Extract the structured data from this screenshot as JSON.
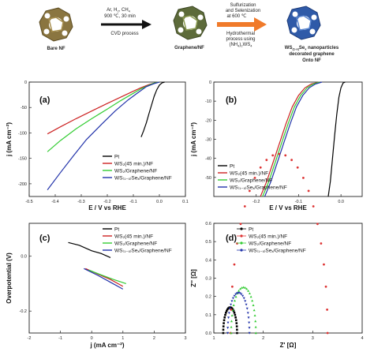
{
  "scheme": {
    "stage1_label": "Bare NF",
    "arrow1_lines": [
      "Ar, H",
      "900 ℃, 30 min"
    ],
    "arrow1_line1_parts": [
      "Ar, H",
      "2",
      ", CH",
      "4"
    ],
    "arrow1_below": "CVD process",
    "stage2_label": "Graphene/NF",
    "arrow2_above_lines": [
      "Sulfurization",
      "and Selenization",
      "at 600 ℃"
    ],
    "arrow2_below_lines": [
      "Hydrothermal",
      "process using"
    ],
    "arrow2_below_formula_parts": [
      "(NH",
      "4",
      ")",
      "2",
      "WS",
      "4"
    ],
    "stage3_label_parts": [
      "WS",
      "(1-x)",
      "Se",
      "x",
      " nanoparticles"
    ],
    "stage3_label_lines": [
      "decorated graphene",
      "Onto NF"
    ],
    "colors": {
      "bare": "#7d6a34",
      "graphene": "#5d6b3a",
      "ws": "#2f5aa8",
      "arrow1": "#111111",
      "arrow2": "#f07a2a"
    }
  },
  "chart_data": [
    {
      "panel": "(a)",
      "type": "line",
      "xlabel": "E / V vs RHE",
      "ylabel": "j (mA cm⁻²)",
      "xlim": [
        -0.5,
        0.1
      ],
      "ylim": [
        -225,
        0
      ],
      "xticks": [
        "-0.5",
        "-0.4",
        "-0.3",
        "-0.2",
        "-0.1",
        "0.0",
        "0.1"
      ],
      "yticks": [
        "0",
        "-50",
        "-100",
        "-150",
        "-200"
      ],
      "legend_position": "bottom-right",
      "series": [
        {
          "name": "Pt",
          "color": "#000000",
          "x": [
            -0.07,
            -0.06,
            -0.05,
            -0.04,
            -0.03,
            -0.02,
            -0.01,
            0.0,
            0.01,
            0.02
          ],
          "y": [
            -108,
            -95,
            -80,
            -62,
            -45,
            -28,
            -15,
            -6,
            -1.5,
            0
          ]
        },
        {
          "name": "WS₂(45 min.)/NF",
          "color": "#cc2222",
          "x": [
            -0.43,
            -0.38,
            -0.32,
            -0.26,
            -0.2,
            -0.15,
            -0.1,
            -0.07,
            -0.04,
            -0.02,
            0.0
          ],
          "y": [
            -102,
            -88,
            -72,
            -57,
            -42,
            -30,
            -18,
            -11,
            -5,
            -2,
            0
          ]
        },
        {
          "name": "WS₂/Graphene/NF",
          "color": "#33cc33",
          "x": [
            -0.43,
            -0.38,
            -0.32,
            -0.26,
            -0.2,
            -0.15,
            -0.1,
            -0.07,
            -0.04,
            -0.02,
            0.0
          ],
          "y": [
            -137,
            -115,
            -92,
            -72,
            -53,
            -37,
            -22,
            -13,
            -6,
            -2,
            0
          ]
        },
        {
          "name": "WS₍₁₋ₓ₎Seₓ/Graphene/NF",
          "color": "#2233aa",
          "x": [
            -0.43,
            -0.38,
            -0.33,
            -0.28,
            -0.22,
            -0.17,
            -0.12,
            -0.08,
            -0.05,
            -0.02,
            0.0
          ],
          "y": [
            -212,
            -178,
            -145,
            -113,
            -82,
            -57,
            -35,
            -20,
            -9,
            -3,
            0
          ]
        }
      ]
    },
    {
      "panel": "(b)",
      "type": "line",
      "xlabel": "E / V vs RHE",
      "ylabel": "j (mA cm⁻²)",
      "xlim": [
        -0.3,
        0.05
      ],
      "ylim": [
        -60,
        0
      ],
      "xticks": [
        "-0.2",
        "-0.1",
        "0.0"
      ],
      "yticks": [
        "0",
        "-10",
        "-20",
        "-30",
        "-40",
        "-50"
      ],
      "legend_position": "bottom-left",
      "series": [
        {
          "name": "Pt",
          "color": "#000000",
          "x": [
            -0.03,
            -0.025,
            -0.02,
            -0.015,
            -0.01,
            -0.005,
            0.0,
            0.005,
            0.01
          ],
          "y": [
            -60,
            -52,
            -40,
            -28,
            -17,
            -8,
            -3,
            -0.5,
            0
          ]
        },
        {
          "name": "WS₂(45 min.)/NF",
          "color": "#cc2222",
          "x": [
            -0.19,
            -0.175,
            -0.16,
            -0.145,
            -0.13,
            -0.115,
            -0.1,
            -0.085,
            -0.07,
            -0.05
          ],
          "y": [
            -60,
            -52,
            -42,
            -32,
            -22,
            -13,
            -7,
            -3,
            -1,
            0
          ]
        },
        {
          "name": "WS₂/Graphene/NF",
          "color": "#33cc33",
          "x": [
            -0.185,
            -0.17,
            -0.155,
            -0.14,
            -0.125,
            -0.11,
            -0.095,
            -0.08,
            -0.065,
            -0.05
          ],
          "y": [
            -60,
            -52,
            -42,
            -32,
            -22,
            -13,
            -7,
            -3,
            -1,
            0
          ]
        },
        {
          "name": "WS₍₁₋ₓ₎Seₓ/Graphene/NF",
          "color": "#2233aa",
          "x": [
            -0.18,
            -0.165,
            -0.15,
            -0.135,
            -0.12,
            -0.105,
            -0.09,
            -0.075,
            -0.06,
            -0.045
          ],
          "y": [
            -60,
            -52,
            -42,
            -32,
            -22,
            -13,
            -7,
            -3,
            -1,
            0
          ]
        }
      ]
    },
    {
      "panel": "(c)",
      "type": "line",
      "xlabel": "j (mA cm⁻²)",
      "ylabel": "Overpotential (V)",
      "xlim": [
        -2,
        3
      ],
      "ylim": [
        -0.28,
        0.12
      ],
      "xticks": [
        "-2",
        "-1",
        "0",
        "1",
        "2",
        "3"
      ],
      "yticks": [
        "-0.2",
        "0.0"
      ],
      "ytick_values": [
        -0.2,
        0.0
      ],
      "legend_position": "top-right",
      "series": [
        {
          "name": "Pt",
          "color": "#000000",
          "x": [
            -0.75,
            -0.4,
            0.0,
            0.3,
            0.6
          ],
          "y": [
            0.05,
            0.04,
            0.02,
            0.01,
            -0.005
          ]
        },
        {
          "name": "WS₂(45 min.)/NF",
          "color": "#cc2222",
          "x": [
            -0.2,
            0.2,
            0.6,
            1.0
          ],
          "y": [
            -0.045,
            -0.065,
            -0.085,
            -0.11
          ]
        },
        {
          "name": "WS₂/Graphene/NF",
          "color": "#33cc33",
          "x": [
            -0.1,
            0.3,
            0.7,
            1.1
          ],
          "y": [
            -0.05,
            -0.068,
            -0.085,
            -0.1
          ]
        },
        {
          "name": "WS₍₁₋ₓ₎Seₓ/Graphene/NF",
          "color": "#2233aa",
          "x": [
            -0.25,
            0.2,
            0.6,
            1.0
          ],
          "y": [
            -0.045,
            -0.07,
            -0.095,
            -0.12
          ]
        }
      ]
    },
    {
      "panel": "(d)",
      "type": "scatter",
      "xlabel": "Z' [Ω]",
      "ylabel": "Z'' [Ω]",
      "xlim": [
        1,
        4
      ],
      "ylim": [
        0,
        0.6
      ],
      "xticks": [
        "1",
        "2",
        "3",
        "4"
      ],
      "yticks": [
        "0.0",
        "0.1",
        "0.2",
        "0.3",
        "0.4",
        "0.5",
        "0.6"
      ],
      "legend_position": "top-left",
      "series": [
        {
          "name": "Pt",
          "color": "#000000",
          "marker": "square",
          "center": 1.33,
          "radius": 0.14
        },
        {
          "name": "WS₂(45 min.)/NF",
          "color": "#dd3333",
          "marker": "circle",
          "center": 2.32,
          "radius": 0.98
        },
        {
          "name": "WS₂/Graphene/NF",
          "color": "#33cc33",
          "marker": "triangle",
          "center": 1.6,
          "radius": 0.25
        },
        {
          "name": "WS₍₁₋ₓ₎Seₓ/Graphene/NF",
          "color": "#2233aa",
          "marker": "triangle-down",
          "center": 1.5,
          "radius": 0.22
        }
      ]
    }
  ]
}
